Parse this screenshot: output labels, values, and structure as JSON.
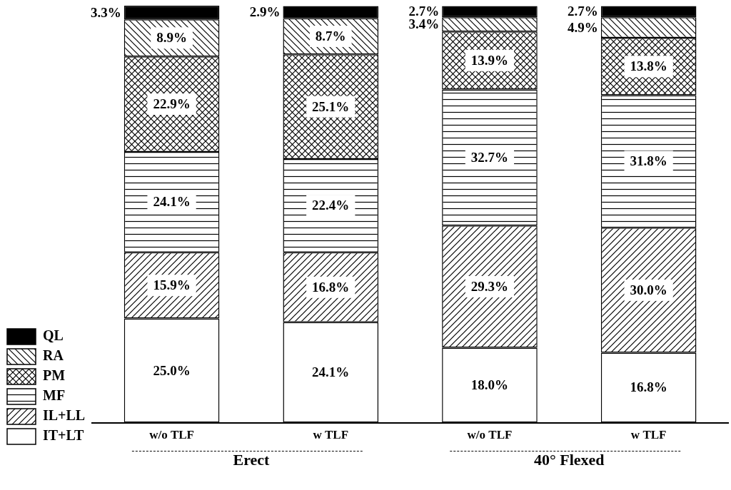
{
  "chart_data": {
    "type": "bar",
    "stacked": true,
    "categories": [
      "w/o TLF",
      "w TLF",
      "w/o TLF",
      "w TLF"
    ],
    "groups": [
      {
        "name": "Erect",
        "size": 2
      },
      {
        "name": "40° Flexed",
        "size": 2
      }
    ],
    "series": [
      {
        "name": "IT+LT",
        "color": "#ffffff",
        "values": [
          25.0,
          24.1,
          18.0,
          16.8
        ],
        "value_labels": [
          "25.0%",
          "24.1%",
          "18.0%",
          "16.8%"
        ]
      },
      {
        "name": "IL+LL",
        "color": "#ffffff",
        "values": [
          15.9,
          16.8,
          29.3,
          30.0
        ],
        "value_labels": [
          "15.9%",
          "16.8%",
          "29.3%",
          "30.0%"
        ]
      },
      {
        "name": "MF",
        "color": "#ffffff",
        "values": [
          24.1,
          22.4,
          32.7,
          31.8
        ],
        "value_labels": [
          "24.1%",
          "22.4%",
          "32.7%",
          "31.8%"
        ]
      },
      {
        "name": "PM",
        "color": "#ffffff",
        "values": [
          22.9,
          25.1,
          13.9,
          13.8
        ],
        "value_labels": [
          "22.9%",
          "25.1%",
          "13.9%",
          "13.8%"
        ]
      },
      {
        "name": "RA",
        "color": "#ffffff",
        "values": [
          8.9,
          8.7,
          3.4,
          4.9
        ],
        "value_labels": [
          "8.9%",
          "8.7%",
          "3.4%",
          "4.9%"
        ]
      },
      {
        "name": "QL",
        "color": "#000000",
        "values": [
          3.3,
          2.9,
          2.7,
          2.7
        ],
        "value_labels": [
          "3.3%",
          "2.9%",
          "2.7%",
          "2.7%"
        ]
      }
    ],
    "ylim": [
      0,
      100.1
    ],
    "grid": false,
    "legend": "lower left",
    "data_labels": true,
    "tick_labels": "x"
  }
}
